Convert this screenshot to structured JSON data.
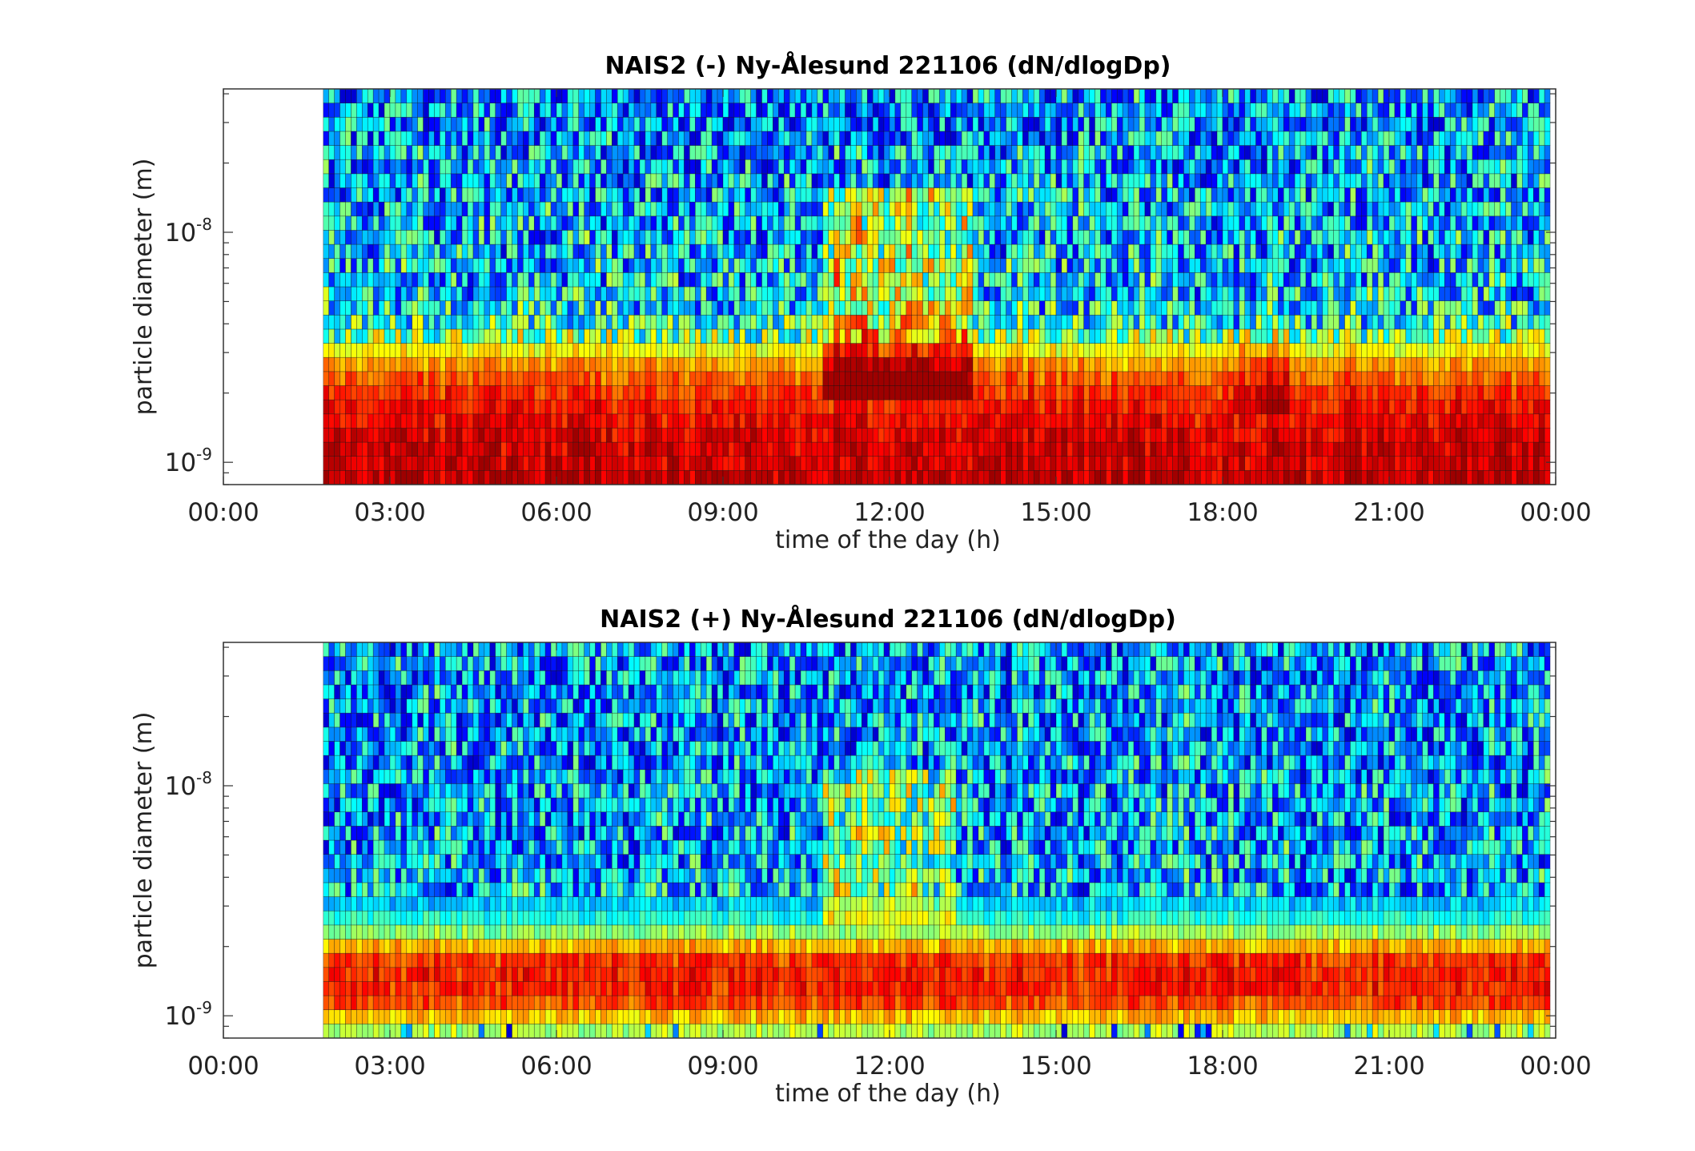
{
  "chart_data": [
    {
      "type": "heatmap",
      "panel": "top",
      "title": "NAIS2 (-) Ny-Ålesund 221106 (dN/dlogDp)",
      "xlabel": "time of the day (h)",
      "ylabel": "particle diameter (m)",
      "x_tick_labels": [
        "00:00",
        "03:00",
        "06:00",
        "09:00",
        "12:00",
        "15:00",
        "18:00",
        "21:00",
        "00:00"
      ],
      "x_ticks_hours": [
        0,
        3,
        6,
        9,
        12,
        15,
        18,
        21,
        24
      ],
      "y_tick_values": [
        1e-09,
        1e-08
      ],
      "y_scale": "log",
      "xlim_hours": [
        0,
        24
      ],
      "ylim_m": [
        8e-10,
        4.2e-08
      ],
      "data_start_hour": 1.8,
      "data_end_hour": 23.9,
      "colormap": "jet",
      "size_bins": 28,
      "profile_baseline": [
        0.93,
        0.92,
        0.91,
        0.9,
        0.88,
        0.86,
        0.83,
        0.78,
        0.72,
        0.62,
        0.48,
        0.4,
        0.36,
        0.34,
        0.33,
        0.33,
        0.32,
        0.32,
        0.31,
        0.31,
        0.3,
        0.3,
        0.29,
        0.29,
        0.28,
        0.28,
        0.28,
        0.28
      ],
      "events": [
        {
          "start_hour": 10.8,
          "end_hour": 13.5,
          "from_bin": 6,
          "to_bin": 20,
          "boost": 0.28
        },
        {
          "start_hour": 18.2,
          "end_hour": 19.2,
          "from_bin": 5,
          "to_bin": 10,
          "boost": 0.1
        }
      ],
      "noise": 0.22
    },
    {
      "type": "heatmap",
      "panel": "bottom",
      "title": "NAIS2 (+) Ny-Ålesund 221106 (dN/dlogDp)",
      "xlabel": "time of the day (h)",
      "ylabel": "particle diameter (m)",
      "x_tick_labels": [
        "00:00",
        "03:00",
        "06:00",
        "09:00",
        "12:00",
        "15:00",
        "18:00",
        "21:00",
        "00:00"
      ],
      "x_ticks_hours": [
        0,
        3,
        6,
        9,
        12,
        15,
        18,
        21,
        24
      ],
      "y_tick_values": [
        1e-09,
        1e-08
      ],
      "y_scale": "log",
      "xlim_hours": [
        0,
        24
      ],
      "ylim_m": [
        8e-10,
        4.2e-08
      ],
      "data_start_hour": 1.8,
      "data_end_hour": 23.9,
      "colormap": "jet",
      "size_bins": 28,
      "profile_baseline": [
        0.55,
        0.68,
        0.8,
        0.84,
        0.84,
        0.82,
        0.7,
        0.52,
        0.4,
        0.33,
        0.31,
        0.31,
        0.3,
        0.3,
        0.3,
        0.29,
        0.29,
        0.29,
        0.29,
        0.28,
        0.28,
        0.28,
        0.28,
        0.28,
        0.28,
        0.28,
        0.28,
        0.28
      ],
      "events": [
        {
          "start_hour": 10.8,
          "end_hour": 13.2,
          "from_bin": 8,
          "to_bin": 18,
          "boost": 0.24
        },
        {
          "start_hour": 18.3,
          "end_hour": 19.3,
          "from_bin": 3,
          "to_bin": 5,
          "boost": 0.05
        }
      ],
      "noise": 0.22
    }
  ]
}
